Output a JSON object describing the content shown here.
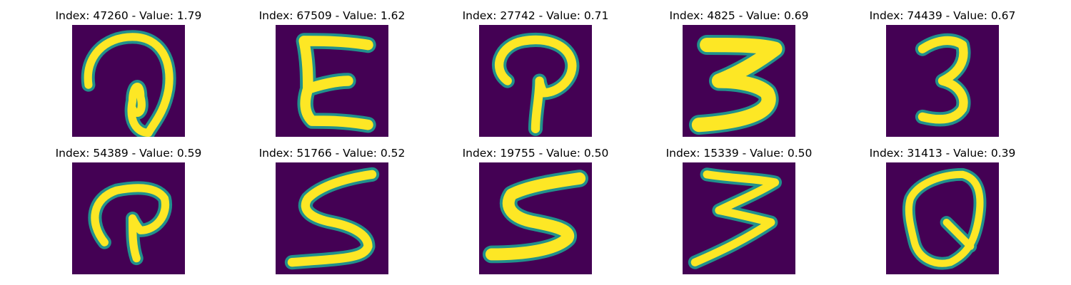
{
  "colors": {
    "background": "#440154",
    "stroke": "#fde725",
    "edge": "#21918c"
  },
  "panels": [
    {
      "index": "47260",
      "value": "1.79",
      "glyph": "ring-loop-icon"
    },
    {
      "index": "67509",
      "value": "1.62",
      "glyph": "letter-e-icon"
    },
    {
      "index": "27742",
      "value": "0.71",
      "glyph": "hook-p-icon"
    },
    {
      "index": "4825",
      "value": "0.69",
      "glyph": "digit-3-bold-icon"
    },
    {
      "index": "74439",
      "value": "0.67",
      "glyph": "digit-3-icon"
    },
    {
      "index": "54389",
      "value": "0.59",
      "glyph": "hook-p-icon"
    },
    {
      "index": "51766",
      "value": "0.52",
      "glyph": "digit-5-icon"
    },
    {
      "index": "19755",
      "value": "0.50",
      "glyph": "digit-5-icon"
    },
    {
      "index": "15339",
      "value": "0.50",
      "glyph": "digit-3-z-icon"
    },
    {
      "index": "31413",
      "value": "0.39",
      "glyph": "loop-q-icon"
    }
  ]
}
